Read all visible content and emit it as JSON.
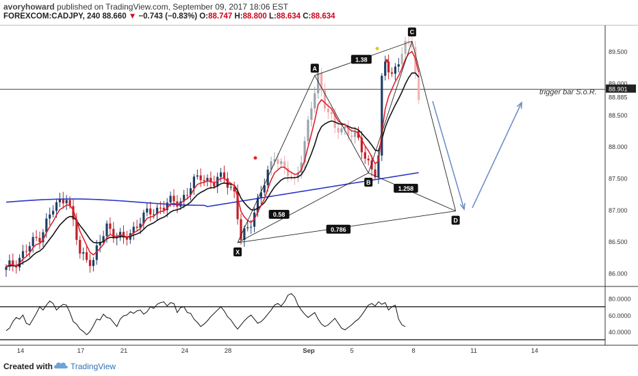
{
  "header": {
    "user": "avoryhoward",
    "published": "published on TradingView.com, September 09, 2017 18:06 EST",
    "symbol": "FOREXCOM:CADJPY, 240",
    "last": "88.660",
    "change_arrow": "▼",
    "change": "−0.743 (−0.83%)",
    "o_label": "O:",
    "o": "88.747",
    "h_label": "H:",
    "h": "88.800",
    "l_label": "L:",
    "l": "88.634",
    "c_label": "C:",
    "c": "88.634"
  },
  "footer": {
    "created": "Created with",
    "brand": "TradingView",
    "logo_icon": "tradingview-cloud-icon"
  },
  "colors": {
    "up": "#1f3f66",
    "down": "#c0202a",
    "ema_fast": "#e0212b",
    "ema_slow": "#111111",
    "ma_long": "#2a35c8",
    "pattern": "#222222",
    "arrows": "#6f8fc8",
    "rsi": "#111111"
  },
  "chart_data": [
    {
      "type": "candlestick",
      "title": "",
      "x_tick_labels": [
        "14",
        "17",
        "21",
        "24",
        "28",
        "Sep",
        "5",
        "8",
        "11",
        "14"
      ],
      "y_tick_labels": [
        "89.500",
        "89.000",
        "88.500",
        "88.000",
        "87.500",
        "87.000",
        "86.500",
        "86.000"
      ],
      "ylim": [
        85.8,
        89.9
      ],
      "price_line": {
        "value": 88.901,
        "label": "88.901"
      },
      "last_price_label": "88.885",
      "annotation": "trigger bar S.o.R.",
      "harmonic_pattern": {
        "points": [
          {
            "label": "X",
            "price": 86.48
          },
          {
            "label": "A",
            "price": 89.12
          },
          {
            "label": "B",
            "price": 87.58
          },
          {
            "label": "C",
            "price": 89.66
          },
          {
            "label": "D",
            "price": 86.98
          }
        ],
        "ratios": [
          {
            "label": "0.58"
          },
          {
            "label": "1.38"
          },
          {
            "label": "1.258"
          },
          {
            "label": "0.786"
          }
        ]
      },
      "series": [
        {
          "name": "ema_fast"
        },
        {
          "name": "ema_slow"
        },
        {
          "name": "ma_long"
        }
      ]
    },
    {
      "type": "line",
      "title": "",
      "y_tick_labels": [
        "80.0000",
        "60.0000",
        "40.0000"
      ],
      "ylim": [
        25,
        93
      ],
      "overbought": 70,
      "oversold": 30,
      "values": [
        41,
        44,
        52,
        57,
        55,
        60,
        50,
        48,
        55,
        62,
        70,
        66,
        72,
        77,
        74,
        66,
        70,
        73,
        72,
        63,
        52,
        49,
        43,
        40,
        36,
        40,
        47,
        55,
        54,
        61,
        57,
        56,
        51,
        46,
        55,
        59,
        60,
        64,
        62,
        65,
        66,
        61,
        64,
        70,
        68,
        73,
        75,
        76,
        71,
        75,
        74,
        63,
        69,
        70,
        63,
        62,
        55,
        51,
        46,
        49,
        53,
        58,
        62,
        66,
        70,
        65,
        58,
        54,
        48,
        43,
        48,
        53,
        57,
        60,
        55,
        50,
        52,
        56,
        61,
        66,
        72,
        74,
        71,
        76,
        84,
        86,
        82,
        72,
        66,
        61,
        57,
        60,
        63,
        55,
        49,
        46,
        48,
        52,
        56,
        50,
        44,
        42,
        45,
        48,
        52,
        55,
        60,
        66,
        72,
        74,
        71,
        76,
        73,
        75,
        66,
        70,
        72,
        55,
        48,
        46
      ]
    }
  ]
}
